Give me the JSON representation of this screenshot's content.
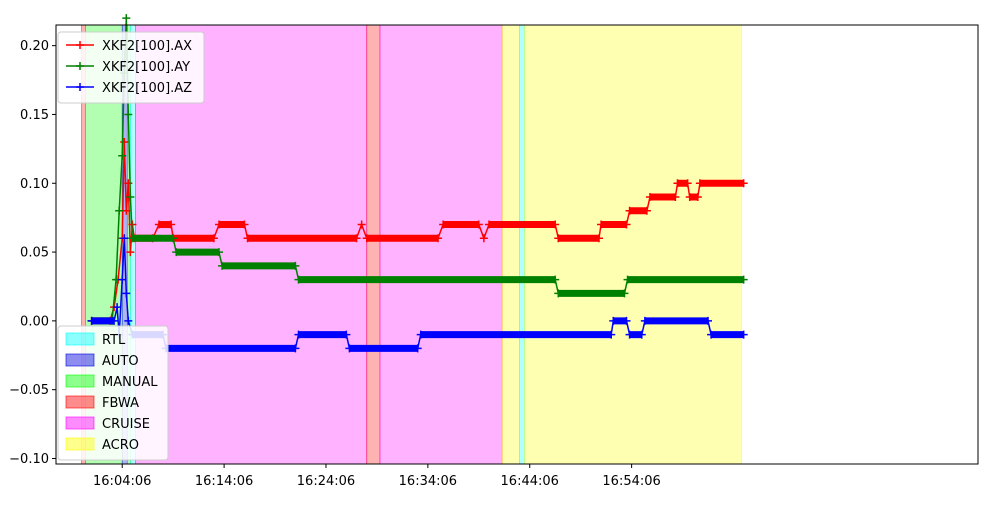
{
  "chart_data": {
    "type": "line",
    "title": "",
    "xlabel": "",
    "ylabel": "",
    "x_unit": "minutes",
    "xlim": [
      -6.5,
      84.0
    ],
    "ylim": [
      -0.104,
      0.215
    ],
    "x_ticks": [
      {
        "value": 0,
        "label": "16:04:06"
      },
      {
        "value": 10,
        "label": "16:14:06"
      },
      {
        "value": 20,
        "label": "16:24:06"
      },
      {
        "value": 30,
        "label": "16:34:06"
      },
      {
        "value": 40,
        "label": "16:44:06"
      },
      {
        "value": 50,
        "label": "16:54:06"
      }
    ],
    "y_ticks": [
      {
        "value": -0.1,
        "label": "−0.10"
      },
      {
        "value": -0.05,
        "label": "−0.05"
      },
      {
        "value": 0.0,
        "label": "0.00"
      },
      {
        "value": 0.05,
        "label": "0.05"
      },
      {
        "value": 0.1,
        "label": "0.10"
      },
      {
        "value": 0.15,
        "label": "0.15"
      },
      {
        "value": 0.2,
        "label": "0.20"
      }
    ],
    "grid": false,
    "legend_series_placement": "top-left",
    "legend_modes_placement": "bottom-left",
    "series": [
      {
        "name": "XKF2[100].AX",
        "color": "#ff0000",
        "points": [
          [
            -3.0,
            0.0
          ],
          [
            -1.2,
            0.0
          ],
          [
            -0.8,
            0.01
          ],
          [
            -0.4,
            0.03
          ],
          [
            0.0,
            0.06
          ],
          [
            0.2,
            0.13
          ],
          [
            0.4,
            0.08
          ],
          [
            0.6,
            0.1
          ],
          [
            0.8,
            0.05
          ],
          [
            1.0,
            0.07
          ],
          [
            1.2,
            0.06
          ],
          [
            3.0,
            0.06
          ],
          [
            3.6,
            0.07
          ],
          [
            4.8,
            0.07
          ],
          [
            5.0,
            0.06
          ],
          [
            9.0,
            0.06
          ],
          [
            9.5,
            0.07
          ],
          [
            12.0,
            0.07
          ],
          [
            12.3,
            0.06
          ],
          [
            23.0,
            0.06
          ],
          [
            23.5,
            0.07
          ],
          [
            24.0,
            0.06
          ],
          [
            31.0,
            0.06
          ],
          [
            31.5,
            0.07
          ],
          [
            35.0,
            0.07
          ],
          [
            35.5,
            0.06
          ],
          [
            36.0,
            0.07
          ],
          [
            42.5,
            0.07
          ],
          [
            42.8,
            0.06
          ],
          [
            46.8,
            0.06
          ],
          [
            47.0,
            0.07
          ],
          [
            49.5,
            0.07
          ],
          [
            49.8,
            0.08
          ],
          [
            51.5,
            0.08
          ],
          [
            51.8,
            0.09
          ],
          [
            54.3,
            0.09
          ],
          [
            54.5,
            0.1
          ],
          [
            55.5,
            0.1
          ],
          [
            55.7,
            0.09
          ],
          [
            56.5,
            0.09
          ],
          [
            56.7,
            0.1
          ],
          [
            61.0,
            0.1
          ]
        ]
      },
      {
        "name": "XKF2[100].AY",
        "color": "#008000",
        "points": [
          [
            -3.0,
            0.0
          ],
          [
            -1.0,
            0.0
          ],
          [
            -0.6,
            0.03
          ],
          [
            -0.3,
            0.08
          ],
          [
            0.0,
            0.12
          ],
          [
            0.2,
            0.18
          ],
          [
            0.4,
            0.22
          ],
          [
            0.6,
            0.15
          ],
          [
            0.8,
            0.09
          ],
          [
            1.0,
            0.06
          ],
          [
            5.0,
            0.06
          ],
          [
            5.3,
            0.05
          ],
          [
            9.5,
            0.05
          ],
          [
            9.8,
            0.04
          ],
          [
            17.0,
            0.04
          ],
          [
            17.3,
            0.03
          ],
          [
            42.5,
            0.03
          ],
          [
            42.8,
            0.02
          ],
          [
            49.3,
            0.02
          ],
          [
            49.6,
            0.03
          ],
          [
            61.0,
            0.03
          ]
        ]
      },
      {
        "name": "XKF2[100].AZ",
        "color": "#0000ff",
        "points": [
          [
            -3.0,
            0.0
          ],
          [
            -0.8,
            0.0
          ],
          [
            -0.5,
            0.01
          ],
          [
            -0.3,
            -0.01
          ],
          [
            0.0,
            0.03
          ],
          [
            0.2,
            0.06
          ],
          [
            0.4,
            0.02
          ],
          [
            0.6,
            0.0
          ],
          [
            1.0,
            -0.01
          ],
          [
            4.0,
            -0.01
          ],
          [
            4.3,
            -0.02
          ],
          [
            17.0,
            -0.02
          ],
          [
            17.3,
            -0.01
          ],
          [
            22.0,
            -0.01
          ],
          [
            22.3,
            -0.02
          ],
          [
            29.0,
            -0.02
          ],
          [
            29.3,
            -0.01
          ],
          [
            48.0,
            -0.01
          ],
          [
            48.2,
            0.0
          ],
          [
            49.5,
            0.0
          ],
          [
            49.8,
            -0.01
          ],
          [
            51.0,
            -0.01
          ],
          [
            51.3,
            0.0
          ],
          [
            57.5,
            0.0
          ],
          [
            57.8,
            -0.01
          ],
          [
            61.0,
            -0.01
          ]
        ]
      }
    ],
    "modes": [
      {
        "name": "RTL",
        "color": "#00ffff"
      },
      {
        "name": "AUTO",
        "color": "#0000e0"
      },
      {
        "name": "MANUAL",
        "color": "#00ff00"
      },
      {
        "name": "FBWA",
        "color": "#ff0000"
      },
      {
        "name": "CRUISE",
        "color": "#ff00ff"
      },
      {
        "name": "ACRO",
        "color": "#ffff00"
      }
    ],
    "mode_spans": [
      {
        "mode": "FBWA",
        "start": -4.0,
        "end": -3.6
      },
      {
        "mode": "MANUAL",
        "start": -3.6,
        "end": 0.0
      },
      {
        "mode": "AUTO",
        "start": 0.0,
        "end": 0.5
      },
      {
        "mode": "MANUAL",
        "start": 0.5,
        "end": 0.8
      },
      {
        "mode": "RTL",
        "start": 0.8,
        "end": 1.3
      },
      {
        "mode": "CRUISE",
        "start": 1.3,
        "end": 24.0
      },
      {
        "mode": "FBWA",
        "start": 24.0,
        "end": 25.3
      },
      {
        "mode": "CRUISE",
        "start": 25.3,
        "end": 37.3
      },
      {
        "mode": "ACRO",
        "start": 37.3,
        "end": 39.0
      },
      {
        "mode": "RTL",
        "start": 39.0,
        "end": 39.5
      },
      {
        "mode": "ACRO",
        "start": 39.5,
        "end": 60.8
      }
    ]
  }
}
